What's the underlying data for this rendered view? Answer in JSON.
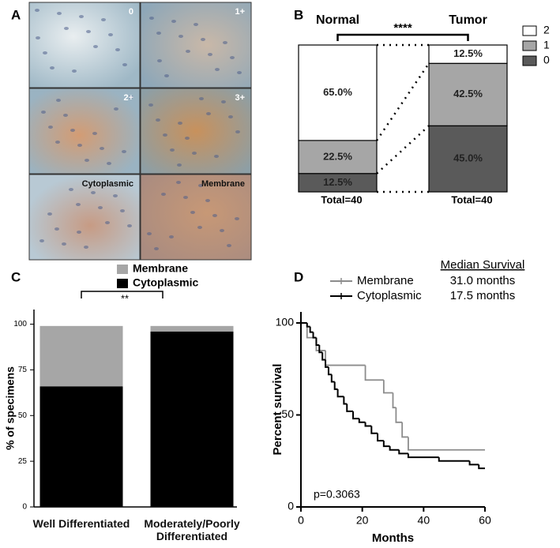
{
  "panel_labels": [
    "A",
    "B",
    "C",
    "D"
  ],
  "micrographs": {
    "labels": [
      "0",
      "1+",
      "2+",
      "3+",
      "Cytoplasmic",
      "Membrane"
    ]
  },
  "chart_data": [
    {
      "type": "stacked-bar-percent",
      "categories": [
        "Normal",
        "Tumor"
      ],
      "series": [
        {
          "name": "2",
          "color": "#ffffff",
          "values": [
            65.0,
            12.5
          ],
          "value_labels": [
            "65.0%",
            "12.5%"
          ]
        },
        {
          "name": "1",
          "color": "#a6a6a6",
          "values": [
            22.5,
            42.5
          ],
          "value_labels": [
            "22.5%",
            "42.5%"
          ]
        },
        {
          "name": "0",
          "color": "#5a5a5a",
          "values": [
            12.5,
            45.0
          ],
          "value_labels": [
            "12.5%",
            "45.0%"
          ]
        }
      ],
      "annotations": {
        "significance": "****",
        "totals": [
          "Total=40",
          "Total=40"
        ]
      }
    },
    {
      "type": "stacked-bar",
      "categories": [
        "Well Differentiated",
        "Moderately/Poorly Differentiated"
      ],
      "series": [
        {
          "name": "Cytoplasmic",
          "color": "#000000",
          "values": [
            66,
            96
          ]
        },
        {
          "name": "Membrane",
          "color": "#a6a6a6",
          "values": [
            33,
            3
          ]
        }
      ],
      "ylabel": "% of specimens",
      "ylim": [
        0,
        108
      ],
      "yticks": [
        0,
        25,
        50,
        75,
        100
      ],
      "annotations": {
        "significance": "**"
      }
    },
    {
      "type": "survival",
      "xlabel": "Months",
      "ylabel": "Percent survival",
      "xlim": [
        0,
        60
      ],
      "xticks": [
        0,
        20,
        40,
        60
      ],
      "ylim": [
        0,
        106
      ],
      "yticks": [
        0,
        50,
        100
      ],
      "series": [
        {
          "name": "Membrane",
          "color": "#8c8c8c",
          "x": [
            0,
            2,
            5,
            8,
            21,
            27,
            30,
            31,
            33,
            35
          ],
          "values": [
            100,
            92,
            85,
            77,
            69,
            62,
            54,
            46,
            38,
            31
          ]
        },
        {
          "name": "Cytoplasmic",
          "color": "#000000",
          "x": [
            0,
            2,
            3,
            4,
            5,
            6,
            7,
            8,
            9,
            10,
            11,
            12,
            14,
            15,
            17,
            19,
            21,
            23,
            25,
            27,
            29,
            32,
            35,
            45,
            55,
            58
          ],
          "values": [
            100,
            98,
            95,
            92,
            88,
            84,
            80,
            76,
            72,
            68,
            64,
            60,
            56,
            52,
            48,
            46,
            44,
            40,
            36,
            33,
            31,
            29,
            27,
            25,
            23,
            21
          ]
        }
      ],
      "median_survival": {
        "header": "Median Survival",
        "values": [
          "31.0 months",
          "17.5 months"
        ]
      },
      "annotations": {
        "p_value": "p=0.3063"
      }
    }
  ]
}
